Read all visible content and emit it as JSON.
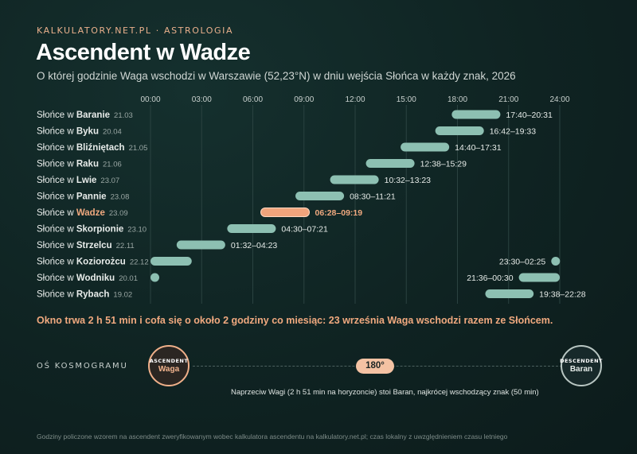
{
  "kicker": "KALKULATORY.NET.PL · ASTROLOGIA",
  "title": "Ascendent w Wadze",
  "subtitle": "O której godzinie Waga wschodzi w Warszawie (52,23°N) w dniu wejścia Słońca w każdy znak, 2026",
  "summary": "Okno trwa 2 h 51 min i cofa się o około 2 godziny co miesiąc: 23 września Waga wschodzi razem ze Słońcem.",
  "axis": {
    "label": "OŚ KOSMOGRAMU",
    "ascendant_caption": "ASCENDENT",
    "ascendant_sign": "Waga",
    "descendant_caption": "DESCENDENT",
    "descendant_sign": "Baran",
    "angle": "180°",
    "note": "Naprzeciw Wagi (2 h 51 min na horyzoncie) stoi Baran, najkrócej wschodzący znak (50 min)"
  },
  "footer": "Godziny policzone wzorem na ascendent zweryfikowanym wobec kalkulatora ascendentu na kalkulatory.net.pl; czas lokalny z uwzględnieniem czasu letniego",
  "colors": {
    "bar": "#8dc0b2",
    "highlight_bar": "#f0a47c",
    "highlight_text": "#f0a97f",
    "grid": "#2a4240"
  },
  "chart_data": {
    "type": "bar",
    "orientation": "horizontal-range",
    "x_range_hours": [
      0,
      24
    ],
    "x_ticks": [
      "00:00",
      "03:00",
      "06:00",
      "09:00",
      "12:00",
      "15:00",
      "18:00",
      "21:00",
      "24:00"
    ],
    "grid": true,
    "highlight_index": 6,
    "rows": [
      {
        "prefix": "Słońce w ",
        "sign": "Baranie",
        "date": "21.03",
        "start": 17.667,
        "end": 20.517,
        "label": "17:40–20:31"
      },
      {
        "prefix": "Słońce w ",
        "sign": "Byku",
        "date": "20.04",
        "start": 16.7,
        "end": 19.55,
        "label": "16:42–19:33"
      },
      {
        "prefix": "Słońce w ",
        "sign": "Bliźniętach",
        "date": "21.05",
        "start": 14.667,
        "end": 17.517,
        "label": "14:40–17:31"
      },
      {
        "prefix": "Słońce w ",
        "sign": "Raku",
        "date": "21.06",
        "start": 12.633,
        "end": 15.483,
        "label": "12:38–15:29"
      },
      {
        "prefix": "Słońce w ",
        "sign": "Lwie",
        "date": "23.07",
        "start": 10.533,
        "end": 13.383,
        "label": "10:32–13:23"
      },
      {
        "prefix": "Słońce w ",
        "sign": "Pannie",
        "date": "23.08",
        "start": 8.5,
        "end": 11.35,
        "label": "08:30–11:21"
      },
      {
        "prefix": "Słońce w ",
        "sign": "Wadze",
        "date": "23.09",
        "start": 6.467,
        "end": 9.317,
        "label": "06:28–09:19"
      },
      {
        "prefix": "Słońce w ",
        "sign": "Skorpionie",
        "date": "23.10",
        "start": 4.5,
        "end": 7.35,
        "label": "04:30–07:21"
      },
      {
        "prefix": "Słońce w ",
        "sign": "Strzelcu",
        "date": "22.11",
        "start": 1.533,
        "end": 4.383,
        "label": "01:32–04:23"
      },
      {
        "prefix": "Słońce w ",
        "sign": "Koziorożcu",
        "date": "22.12",
        "start": 23.5,
        "end": 2.417,
        "label": "23:30–02:25"
      },
      {
        "prefix": "Słońce w ",
        "sign": "Wodniku",
        "date": "20.01",
        "start": 21.6,
        "end": 0.5,
        "label": "21:36–00:30"
      },
      {
        "prefix": "Słońce w ",
        "sign": "Rybach",
        "date": "19.02",
        "start": 19.633,
        "end": 22.467,
        "label": "19:38–22:28"
      }
    ]
  }
}
